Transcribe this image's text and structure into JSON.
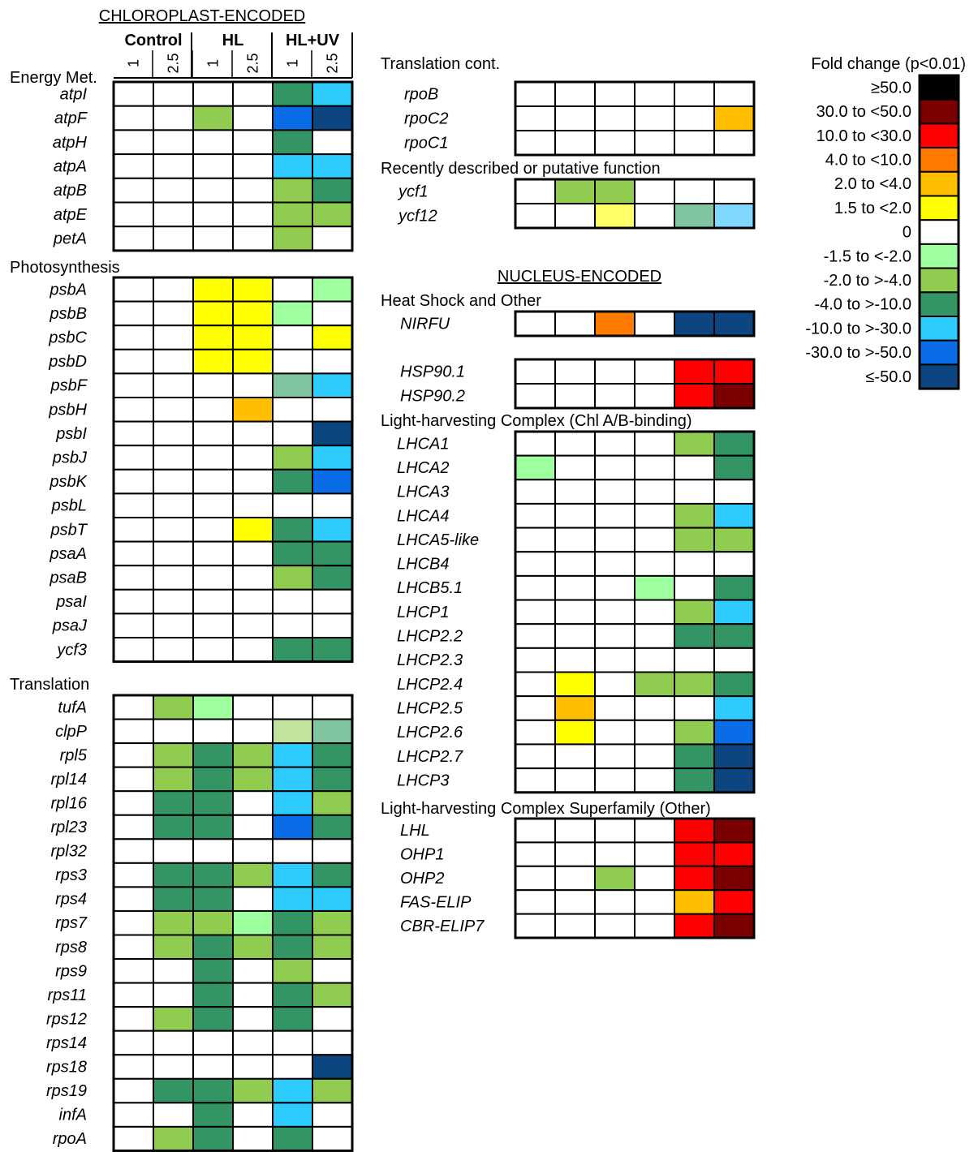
{
  "colors": {
    "ge50": "#000000",
    "30to50": "#7b0000",
    "10to30": "#ff0000",
    "4to10": "#ff7b00",
    "2to4": "#ffbe00",
    "1.5to2": "#ffff00",
    "zero": "#ffffff",
    "n1.5": "#9eff9e",
    "n2": "#8fcc4f",
    "n4": "#329563",
    "n10": "#2ecbff",
    "n30": "#0a6ce6",
    "le50": "#0d4580",
    "pale_green": "#80c4a0",
    "pale_yellow": "#ffff66",
    "light_lime": "#c1e39e",
    "pale_blue": "#80d8ff"
  },
  "legend": {
    "title": "Fold change (p<0.01)",
    "items": [
      {
        "label": "≥50.0",
        "color": "ge50"
      },
      {
        "label": "30.0 to <50.0",
        "color": "30to50"
      },
      {
        "label": "10.0 to <30.0",
        "color": "10to30"
      },
      {
        "label": "4.0 to <10.0",
        "color": "4to10"
      },
      {
        "label": "2.0 to <4.0",
        "color": "2to4"
      },
      {
        "label": "1.5 to <2.0",
        "color": "1.5to2"
      },
      {
        "label": "0",
        "color": "zero"
      },
      {
        "label": "-1.5 to <-2.0",
        "color": "n1.5"
      },
      {
        "label": "-2.0 to >-4.0",
        "color": "n2"
      },
      {
        "label": "-4.0 to >-10.0",
        "color": "n4"
      },
      {
        "label": "-10.0 to >-30.0",
        "color": "n10"
      },
      {
        "label": "-30.0 to >-50.0",
        "color": "n30"
      },
      {
        "label": "≤-50.0",
        "color": "le50"
      }
    ]
  },
  "chart_data": {
    "type": "heatmap",
    "columns": {
      "conditions": [
        "Control",
        "HL",
        "HL+UV"
      ],
      "doses": [
        "1",
        "2.5",
        "1",
        "2.5",
        "1",
        "2.5"
      ]
    },
    "section_titles": {
      "chloroplast": "CHLOROPLAST-ENCODED",
      "nucleus": "NUCLEUS-ENCODED"
    },
    "groups": [
      {
        "key": "energy",
        "title": "Energy Met.",
        "rows": [
          {
            "gene": "atpI",
            "cells": [
              "zero",
              "zero",
              "zero",
              "zero",
              "n4",
              "n10"
            ]
          },
          {
            "gene": "atpF",
            "cells": [
              "zero",
              "zero",
              "n2",
              "zero",
              "n30",
              "le50"
            ]
          },
          {
            "gene": "atpH",
            "cells": [
              "zero",
              "zero",
              "zero",
              "zero",
              "n4",
              "zero"
            ]
          },
          {
            "gene": "atpA",
            "cells": [
              "zero",
              "zero",
              "zero",
              "zero",
              "n10",
              "n10"
            ]
          },
          {
            "gene": "atpB",
            "cells": [
              "zero",
              "zero",
              "zero",
              "zero",
              "n2",
              "n4"
            ]
          },
          {
            "gene": "atpE",
            "cells": [
              "zero",
              "zero",
              "zero",
              "zero",
              "n2",
              "n2"
            ]
          },
          {
            "gene": "petA",
            "cells": [
              "zero",
              "zero",
              "zero",
              "zero",
              "n2",
              "zero"
            ]
          }
        ]
      },
      {
        "key": "photo",
        "title": "Photosynthesis",
        "rows": [
          {
            "gene": "psbA",
            "cells": [
              "zero",
              "zero",
              "1.5to2",
              "1.5to2",
              "zero",
              "n1.5"
            ]
          },
          {
            "gene": "psbB",
            "cells": [
              "zero",
              "zero",
              "1.5to2",
              "1.5to2",
              "n1.5",
              "zero"
            ]
          },
          {
            "gene": "psbC",
            "cells": [
              "zero",
              "zero",
              "1.5to2",
              "1.5to2",
              "zero",
              "1.5to2"
            ]
          },
          {
            "gene": "psbD",
            "cells": [
              "zero",
              "zero",
              "1.5to2",
              "1.5to2",
              "zero",
              "zero"
            ]
          },
          {
            "gene": "psbF",
            "cells": [
              "zero",
              "zero",
              "zero",
              "zero",
              "pale_green",
              "n10"
            ]
          },
          {
            "gene": "psbH",
            "cells": [
              "zero",
              "zero",
              "zero",
              "2to4",
              "zero",
              "zero"
            ]
          },
          {
            "gene": "psbI",
            "cells": [
              "zero",
              "zero",
              "zero",
              "zero",
              "zero",
              "le50"
            ]
          },
          {
            "gene": "psbJ",
            "cells": [
              "zero",
              "zero",
              "zero",
              "zero",
              "n2",
              "n10"
            ]
          },
          {
            "gene": "psbK",
            "cells": [
              "zero",
              "zero",
              "zero",
              "zero",
              "n4",
              "n30"
            ]
          },
          {
            "gene": "psbL",
            "cells": [
              "zero",
              "zero",
              "zero",
              "zero",
              "zero",
              "zero"
            ]
          },
          {
            "gene": "psbT",
            "cells": [
              "zero",
              "zero",
              "zero",
              "1.5to2",
              "n4",
              "n10"
            ]
          },
          {
            "gene": "psaA",
            "cells": [
              "zero",
              "zero",
              "zero",
              "zero",
              "n4",
              "n4"
            ]
          },
          {
            "gene": "psaB",
            "cells": [
              "zero",
              "zero",
              "zero",
              "zero",
              "n2",
              "n4"
            ]
          },
          {
            "gene": "psaI",
            "cells": [
              "zero",
              "zero",
              "zero",
              "zero",
              "zero",
              "zero"
            ]
          },
          {
            "gene": "psaJ",
            "cells": [
              "zero",
              "zero",
              "zero",
              "zero",
              "zero",
              "zero"
            ]
          },
          {
            "gene": "ycf3",
            "cells": [
              "zero",
              "zero",
              "zero",
              "zero",
              "n4",
              "n4"
            ]
          }
        ]
      },
      {
        "key": "transl",
        "title": "Translation",
        "rows": [
          {
            "gene": "tufA",
            "cells": [
              "zero",
              "n2",
              "n1.5",
              "zero",
              "zero",
              "zero"
            ]
          },
          {
            "gene": "clpP",
            "cells": [
              "zero",
              "zero",
              "zero",
              "zero",
              "light_lime",
              "pale_green"
            ]
          },
          {
            "gene": "rpl5",
            "cells": [
              "zero",
              "n2",
              "n4",
              "n2",
              "n10",
              "n4"
            ]
          },
          {
            "gene": "rpl14",
            "cells": [
              "zero",
              "n2",
              "n4",
              "n2",
              "n10",
              "n4"
            ]
          },
          {
            "gene": "rpl16",
            "cells": [
              "zero",
              "n4",
              "n4",
              "zero",
              "n10",
              "n2"
            ]
          },
          {
            "gene": "rpl23",
            "cells": [
              "zero",
              "n4",
              "n4",
              "zero",
              "n30",
              "n4"
            ]
          },
          {
            "gene": "rpl32",
            "cells": [
              "zero",
              "zero",
              "zero",
              "zero",
              "zero",
              "zero"
            ]
          },
          {
            "gene": "rps3",
            "cells": [
              "zero",
              "n4",
              "n4",
              "n2",
              "n10",
              "n4"
            ]
          },
          {
            "gene": "rps4",
            "cells": [
              "zero",
              "n4",
              "n4",
              "zero",
              "n10",
              "n10"
            ]
          },
          {
            "gene": "rps7",
            "cells": [
              "zero",
              "n2",
              "n2",
              "n1.5",
              "n4",
              "n2"
            ]
          },
          {
            "gene": "rps8",
            "cells": [
              "zero",
              "n2",
              "n4",
              "n2",
              "n4",
              "n2"
            ]
          },
          {
            "gene": "rps9",
            "cells": [
              "zero",
              "zero",
              "n4",
              "zero",
              "n2",
              "zero"
            ]
          },
          {
            "gene": "rps11",
            "cells": [
              "zero",
              "zero",
              "n4",
              "zero",
              "n4",
              "n2"
            ]
          },
          {
            "gene": "rps12",
            "cells": [
              "zero",
              "n2",
              "n4",
              "zero",
              "n4",
              "zero"
            ]
          },
          {
            "gene": "rps14",
            "cells": [
              "zero",
              "zero",
              "zero",
              "zero",
              "zero",
              "zero"
            ]
          },
          {
            "gene": "rps18",
            "cells": [
              "zero",
              "zero",
              "zero",
              "zero",
              "zero",
              "le50"
            ]
          },
          {
            "gene": "rps19",
            "cells": [
              "zero",
              "n4",
              "n4",
              "n2",
              "n10",
              "n2"
            ]
          },
          {
            "gene": "infA",
            "cells": [
              "zero",
              "zero",
              "n4",
              "zero",
              "n10",
              "zero"
            ]
          },
          {
            "gene": "rpoA",
            "cells": [
              "zero",
              "n2",
              "n4",
              "zero",
              "n4",
              "zero"
            ]
          }
        ]
      },
      {
        "key": "translcont",
        "title": "Translation cont.",
        "rows": [
          {
            "gene": "rpoB",
            "cells": [
              "zero",
              "zero",
              "zero",
              "zero",
              "zero",
              "zero"
            ]
          },
          {
            "gene": "rpoC2",
            "cells": [
              "zero",
              "zero",
              "zero",
              "zero",
              "zero",
              "2to4"
            ]
          },
          {
            "gene": "rpoC1",
            "cells": [
              "zero",
              "zero",
              "zero",
              "zero",
              "zero",
              "zero"
            ]
          }
        ]
      },
      {
        "key": "putative",
        "title": "Recently described or putative function",
        "rows": [
          {
            "gene": "ycf1",
            "cells": [
              "zero",
              "n2",
              "n2",
              "zero",
              "zero",
              "zero"
            ]
          },
          {
            "gene": "ycf12",
            "cells": [
              "zero",
              "zero",
              "pale_yellow",
              "zero",
              "pale_green",
              "pale_blue"
            ]
          }
        ]
      },
      {
        "key": "heat",
        "title": "Heat Shock and Other",
        "rows": [
          {
            "gene": "NIRFU",
            "cells": [
              "zero",
              "zero",
              "4to10",
              "zero",
              "le50",
              "le50"
            ]
          }
        ]
      },
      {
        "key": "hsp",
        "title": "",
        "rows": [
          {
            "gene": "HSP90.1",
            "cells": [
              "zero",
              "zero",
              "zero",
              "zero",
              "10to30",
              "10to30"
            ]
          },
          {
            "gene": "HSP90.2",
            "cells": [
              "zero",
              "zero",
              "zero",
              "zero",
              "10to30",
              "30to50"
            ]
          }
        ]
      },
      {
        "key": "lhc",
        "title": "Light-harvesting Complex (Chl A/B-binding)",
        "rows": [
          {
            "gene": "LHCA1",
            "cells": [
              "zero",
              "zero",
              "zero",
              "zero",
              "n2",
              "n4"
            ]
          },
          {
            "gene": "LHCA2",
            "cells": [
              "n1.5",
              "zero",
              "zero",
              "zero",
              "zero",
              "n4"
            ]
          },
          {
            "gene": "LHCA3",
            "cells": [
              "zero",
              "zero",
              "zero",
              "zero",
              "zero",
              "zero"
            ]
          },
          {
            "gene": "LHCA4",
            "cells": [
              "zero",
              "zero",
              "zero",
              "zero",
              "n2",
              "n10"
            ]
          },
          {
            "gene": "LHCA5-like",
            "cells": [
              "zero",
              "zero",
              "zero",
              "zero",
              "n2",
              "n2"
            ]
          },
          {
            "gene": "LHCB4",
            "cells": [
              "zero",
              "zero",
              "zero",
              "zero",
              "zero",
              "zero"
            ]
          },
          {
            "gene": "LHCB5.1",
            "cells": [
              "zero",
              "zero",
              "zero",
              "n1.5",
              "zero",
              "n4"
            ]
          },
          {
            "gene": "LHCP1",
            "cells": [
              "zero",
              "zero",
              "zero",
              "zero",
              "n2",
              "n10"
            ]
          },
          {
            "gene": "LHCP2.2",
            "cells": [
              "zero",
              "zero",
              "zero",
              "zero",
              "n4",
              "n4"
            ]
          },
          {
            "gene": "LHCP2.3",
            "cells": [
              "zero",
              "zero",
              "zero",
              "zero",
              "zero",
              "zero"
            ]
          },
          {
            "gene": "LHCP2.4",
            "cells": [
              "zero",
              "1.5to2",
              "zero",
              "n2",
              "n2",
              "n4"
            ]
          },
          {
            "gene": "LHCP2.5",
            "cells": [
              "zero",
              "2to4",
              "zero",
              "zero",
              "zero",
              "n10"
            ]
          },
          {
            "gene": "LHCP2.6",
            "cells": [
              "zero",
              "1.5to2",
              "zero",
              "zero",
              "n2",
              "n30"
            ]
          },
          {
            "gene": "LHCP2.7",
            "cells": [
              "zero",
              "zero",
              "zero",
              "zero",
              "n4",
              "le50"
            ]
          },
          {
            "gene": "LHCP3",
            "cells": [
              "zero",
              "zero",
              "zero",
              "zero",
              "n4",
              "le50"
            ]
          }
        ]
      },
      {
        "key": "lhcsuper",
        "title": "Light-harvesting Complex Superfamily (Other)",
        "rows": [
          {
            "gene": "LHL",
            "cells": [
              "zero",
              "zero",
              "zero",
              "zero",
              "10to30",
              "30to50"
            ]
          },
          {
            "gene": "OHP1",
            "cells": [
              "zero",
              "zero",
              "zero",
              "zero",
              "10to30",
              "10to30"
            ]
          },
          {
            "gene": "OHP2",
            "cells": [
              "zero",
              "zero",
              "n2",
              "zero",
              "10to30",
              "30to50"
            ]
          },
          {
            "gene": "FAS-ELIP",
            "cells": [
              "zero",
              "zero",
              "zero",
              "zero",
              "2to4",
              "10to30"
            ]
          },
          {
            "gene": "CBR-ELIP7",
            "cells": [
              "zero",
              "zero",
              "zero",
              "zero",
              "10to30",
              "30to50"
            ]
          }
        ]
      }
    ]
  }
}
